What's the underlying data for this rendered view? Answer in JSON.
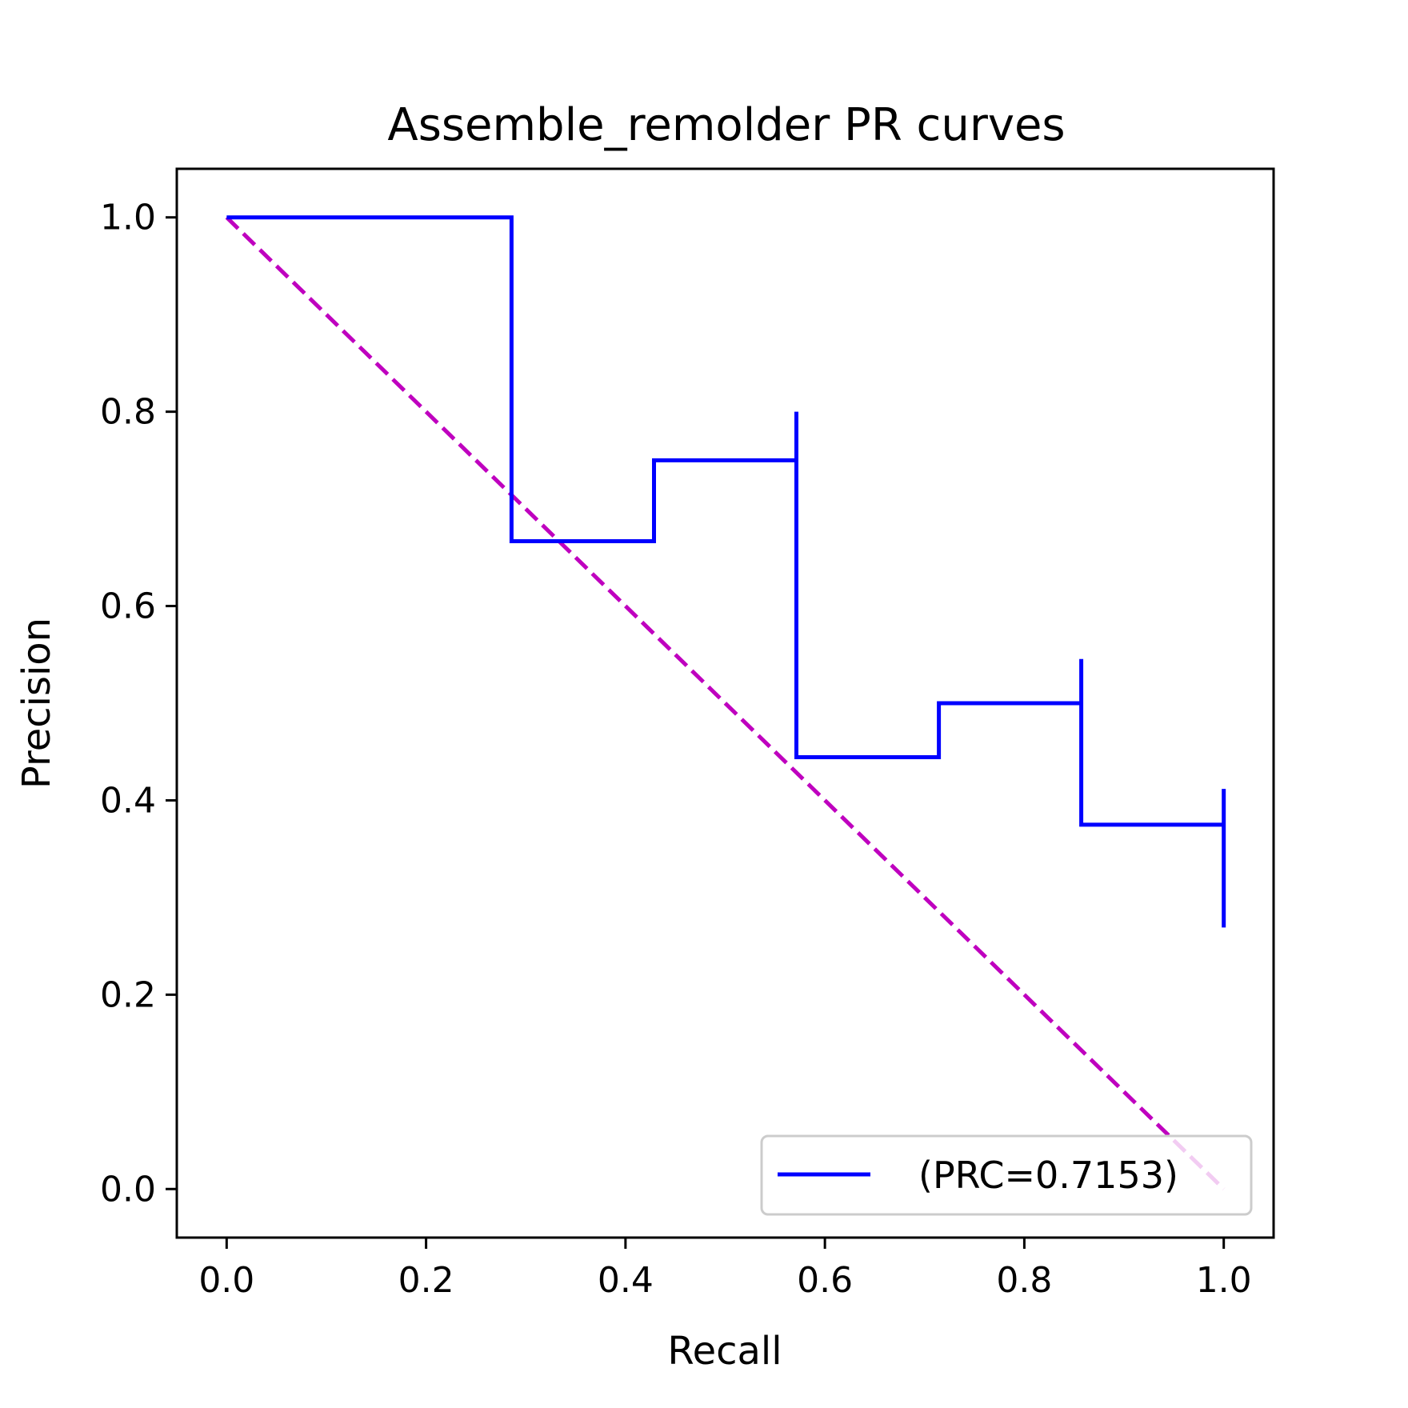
{
  "chart_data": {
    "type": "line",
    "title": "Assemble_remolder PR curves",
    "xlabel": "Recall",
    "ylabel": "Precision",
    "xlim": [
      -0.05,
      1.05
    ],
    "ylim": [
      -0.05,
      1.05
    ],
    "xticks": [
      0.0,
      0.2,
      0.4,
      0.6,
      0.8,
      1.0
    ],
    "xtick_labels": [
      "0.0",
      "0.2",
      "0.4",
      "0.6",
      "0.8",
      "1.0"
    ],
    "yticks": [
      0.0,
      0.2,
      0.4,
      0.6,
      0.8,
      1.0
    ],
    "ytick_labels": [
      "0.0",
      "0.2",
      "0.4",
      "0.6",
      "0.8",
      "1.0"
    ],
    "grid": false,
    "legend_position": "lower-right",
    "series": [
      {
        "name": "(PRC=0.7153)",
        "color": "#0000ff",
        "style": "solid",
        "points": [
          [
            0.0,
            1.0
          ],
          [
            0.2857,
            1.0
          ],
          [
            0.2857,
            0.6667
          ],
          [
            0.4286,
            0.6667
          ],
          [
            0.4286,
            0.75
          ],
          [
            0.5714,
            0.75
          ],
          [
            0.5714,
            0.8
          ],
          [
            0.5714,
            0.4444
          ],
          [
            0.7143,
            0.4444
          ],
          [
            0.7143,
            0.5
          ],
          [
            0.8571,
            0.5
          ],
          [
            0.8571,
            0.5455
          ],
          [
            0.8571,
            0.375
          ],
          [
            1.0,
            0.375
          ],
          [
            1.0,
            0.4118
          ],
          [
            1.0,
            0.2692
          ]
        ]
      },
      {
        "color": "#bf00bf",
        "style": "dashed",
        "points": [
          [
            0.0,
            1.0
          ],
          [
            1.0,
            0.0
          ]
        ]
      }
    ]
  }
}
